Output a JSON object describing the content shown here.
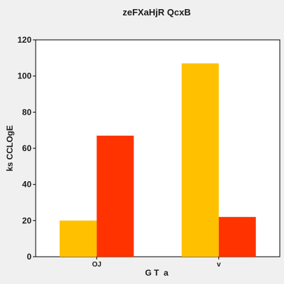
{
  "chart_data": {
    "type": "bar",
    "title": "zeFXaHjR QcxB",
    "xlabel": "G T  a",
    "ylabel": "ks CCLOgE",
    "categories": [
      "OJ",
      "v"
    ],
    "series": [
      {
        "color": "#ffc000",
        "values": [
          20,
          107
        ]
      },
      {
        "color": "#ff3300",
        "values": [
          67,
          22
        ]
      }
    ],
    "ylim": [
      0,
      120
    ],
    "yticks": [
      0,
      20,
      40,
      60,
      80,
      100,
      120
    ],
    "grid": false,
    "legend": "none"
  }
}
